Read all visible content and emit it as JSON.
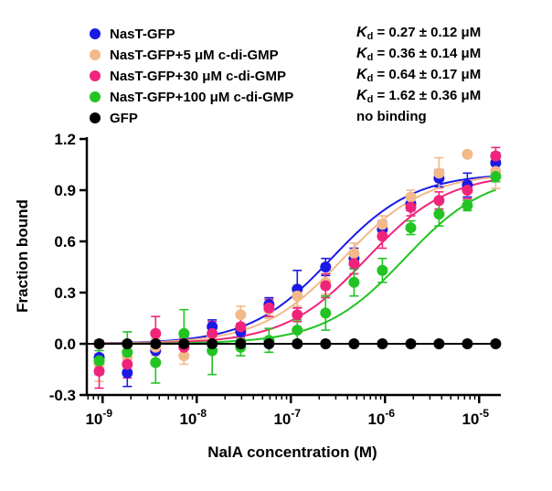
{
  "chart_data": {
    "type": "scatter",
    "title": "",
    "xlabel": "NalA concentration (M)",
    "ylabel": "Fraction bound",
    "x_scale": "log",
    "xlim": [
      6.8e-10,
      1.7e-05
    ],
    "ylim": [
      -0.3,
      1.2
    ],
    "x_ticks": [
      1e-09,
      1e-08,
      1e-07,
      1e-06,
      1e-05
    ],
    "x_tick_labels": [
      {
        "base": "10",
        "exp": "-9"
      },
      {
        "base": "10",
        "exp": "-8"
      },
      {
        "base": "10",
        "exp": "-7"
      },
      {
        "base": "10",
        "exp": "-6"
      },
      {
        "base": "10",
        "exp": "-5"
      }
    ],
    "y_ticks": [
      -0.3,
      0.0,
      0.3,
      0.6,
      0.9,
      1.2
    ],
    "y_tick_labels": [
      "-0.3",
      "0.0",
      "0.3",
      "0.6",
      "0.9",
      "1.2"
    ],
    "legend_position": "top-left",
    "x": [
      9.2e-10,
      1.83e-09,
      3.66e-09,
      7.32e-09,
      1.46e-08,
      2.93e-08,
      5.86e-08,
      1.17e-07,
      2.34e-07,
      4.69e-07,
      9.38e-07,
      1.88e-06,
      3.75e-06,
      7.5e-06,
      1.5e-05
    ],
    "series": [
      {
        "name": "NasT-GFP",
        "color": "#1a1ae6",
        "kd": 2.7e-07,
        "values": [
          -0.08,
          -0.17,
          -0.04,
          -0.02,
          0.1,
          0.07,
          0.23,
          0.32,
          0.45,
          0.5,
          0.67,
          0.82,
          0.97,
          0.93,
          1.06
        ],
        "errors": [
          0.1,
          0.08,
          0.07,
          0.06,
          0.04,
          0.05,
          0.04,
          0.11,
          0.05,
          0.06,
          0.05,
          0.04,
          0.05,
          0.07,
          0.06
        ]
      },
      {
        "name": "NasT-GFP+5  μM c-di-GMP",
        "color": "#f2b98a",
        "kd": 3.6e-07,
        "values": [
          -0.12,
          -0.08,
          -0.02,
          -0.07,
          0.05,
          0.17,
          0.2,
          0.28,
          0.36,
          0.53,
          0.7,
          0.86,
          1.0,
          1.11,
          1.01
        ],
        "errors": [
          0.1,
          0.06,
          0.05,
          0.05,
          0.05,
          0.05,
          0.05,
          0.06,
          0.07,
          0.06,
          0.05,
          0.04,
          0.09,
          0.0,
          0.1
        ]
      },
      {
        "name": "NasT-GFP+30 μM c-di-GMP",
        "color": "#f0247a",
        "kd": 6.4e-07,
        "values": [
          -0.16,
          -0.12,
          0.06,
          -0.02,
          0.06,
          0.1,
          0.21,
          0.17,
          0.34,
          0.47,
          0.63,
          0.8,
          0.84,
          0.9,
          1.1
        ],
        "errors": [
          0.1,
          0.08,
          0.1,
          0.05,
          0.07,
          0.06,
          0.05,
          0.04,
          0.07,
          0.06,
          0.07,
          0.05,
          0.05,
          0.05,
          0.05
        ]
      },
      {
        "name": "NasT-GFP+100 μM c-di-GMP",
        "color": "#22c322",
        "kd": 1.62e-06,
        "values": [
          -0.1,
          -0.05,
          -0.11,
          0.06,
          -0.04,
          -0.02,
          0.02,
          0.08,
          0.18,
          0.36,
          0.43,
          0.68,
          0.76,
          0.81,
          0.98
        ],
        "errors": [
          0.06,
          0.12,
          0.12,
          0.14,
          0.14,
          0.05,
          0.07,
          0.06,
          0.1,
          0.08,
          0.07,
          0.04,
          0.07,
          0.03,
          0.03
        ]
      },
      {
        "name": "GFP",
        "color": "#000000",
        "kd": null,
        "values": [
          0.0,
          0.0,
          0.0,
          0.0,
          0.0,
          0.0,
          0.0,
          0.0,
          0.0,
          0.0,
          0.0,
          0.0,
          0.0,
          0.0,
          0.0
        ],
        "errors": [
          0,
          0,
          0,
          0,
          0,
          0,
          0,
          0,
          0,
          0,
          0,
          0,
          0,
          0,
          0
        ]
      }
    ],
    "annotations": [
      {
        "symbol": "K",
        "sub": "d",
        "text": " = 0.27 ± 0.12 μM"
      },
      {
        "symbol": "K",
        "sub": "d",
        "text": " = 0.36 ± 0.14 μM"
      },
      {
        "symbol": "K",
        "sub": "d",
        "text": " = 0.64 ± 0.17 μM"
      },
      {
        "symbol": "K",
        "sub": "d",
        "text": " = 1.62 ± 0.36 μM"
      },
      {
        "symbol": "",
        "sub": "",
        "text": "no binding"
      }
    ]
  }
}
